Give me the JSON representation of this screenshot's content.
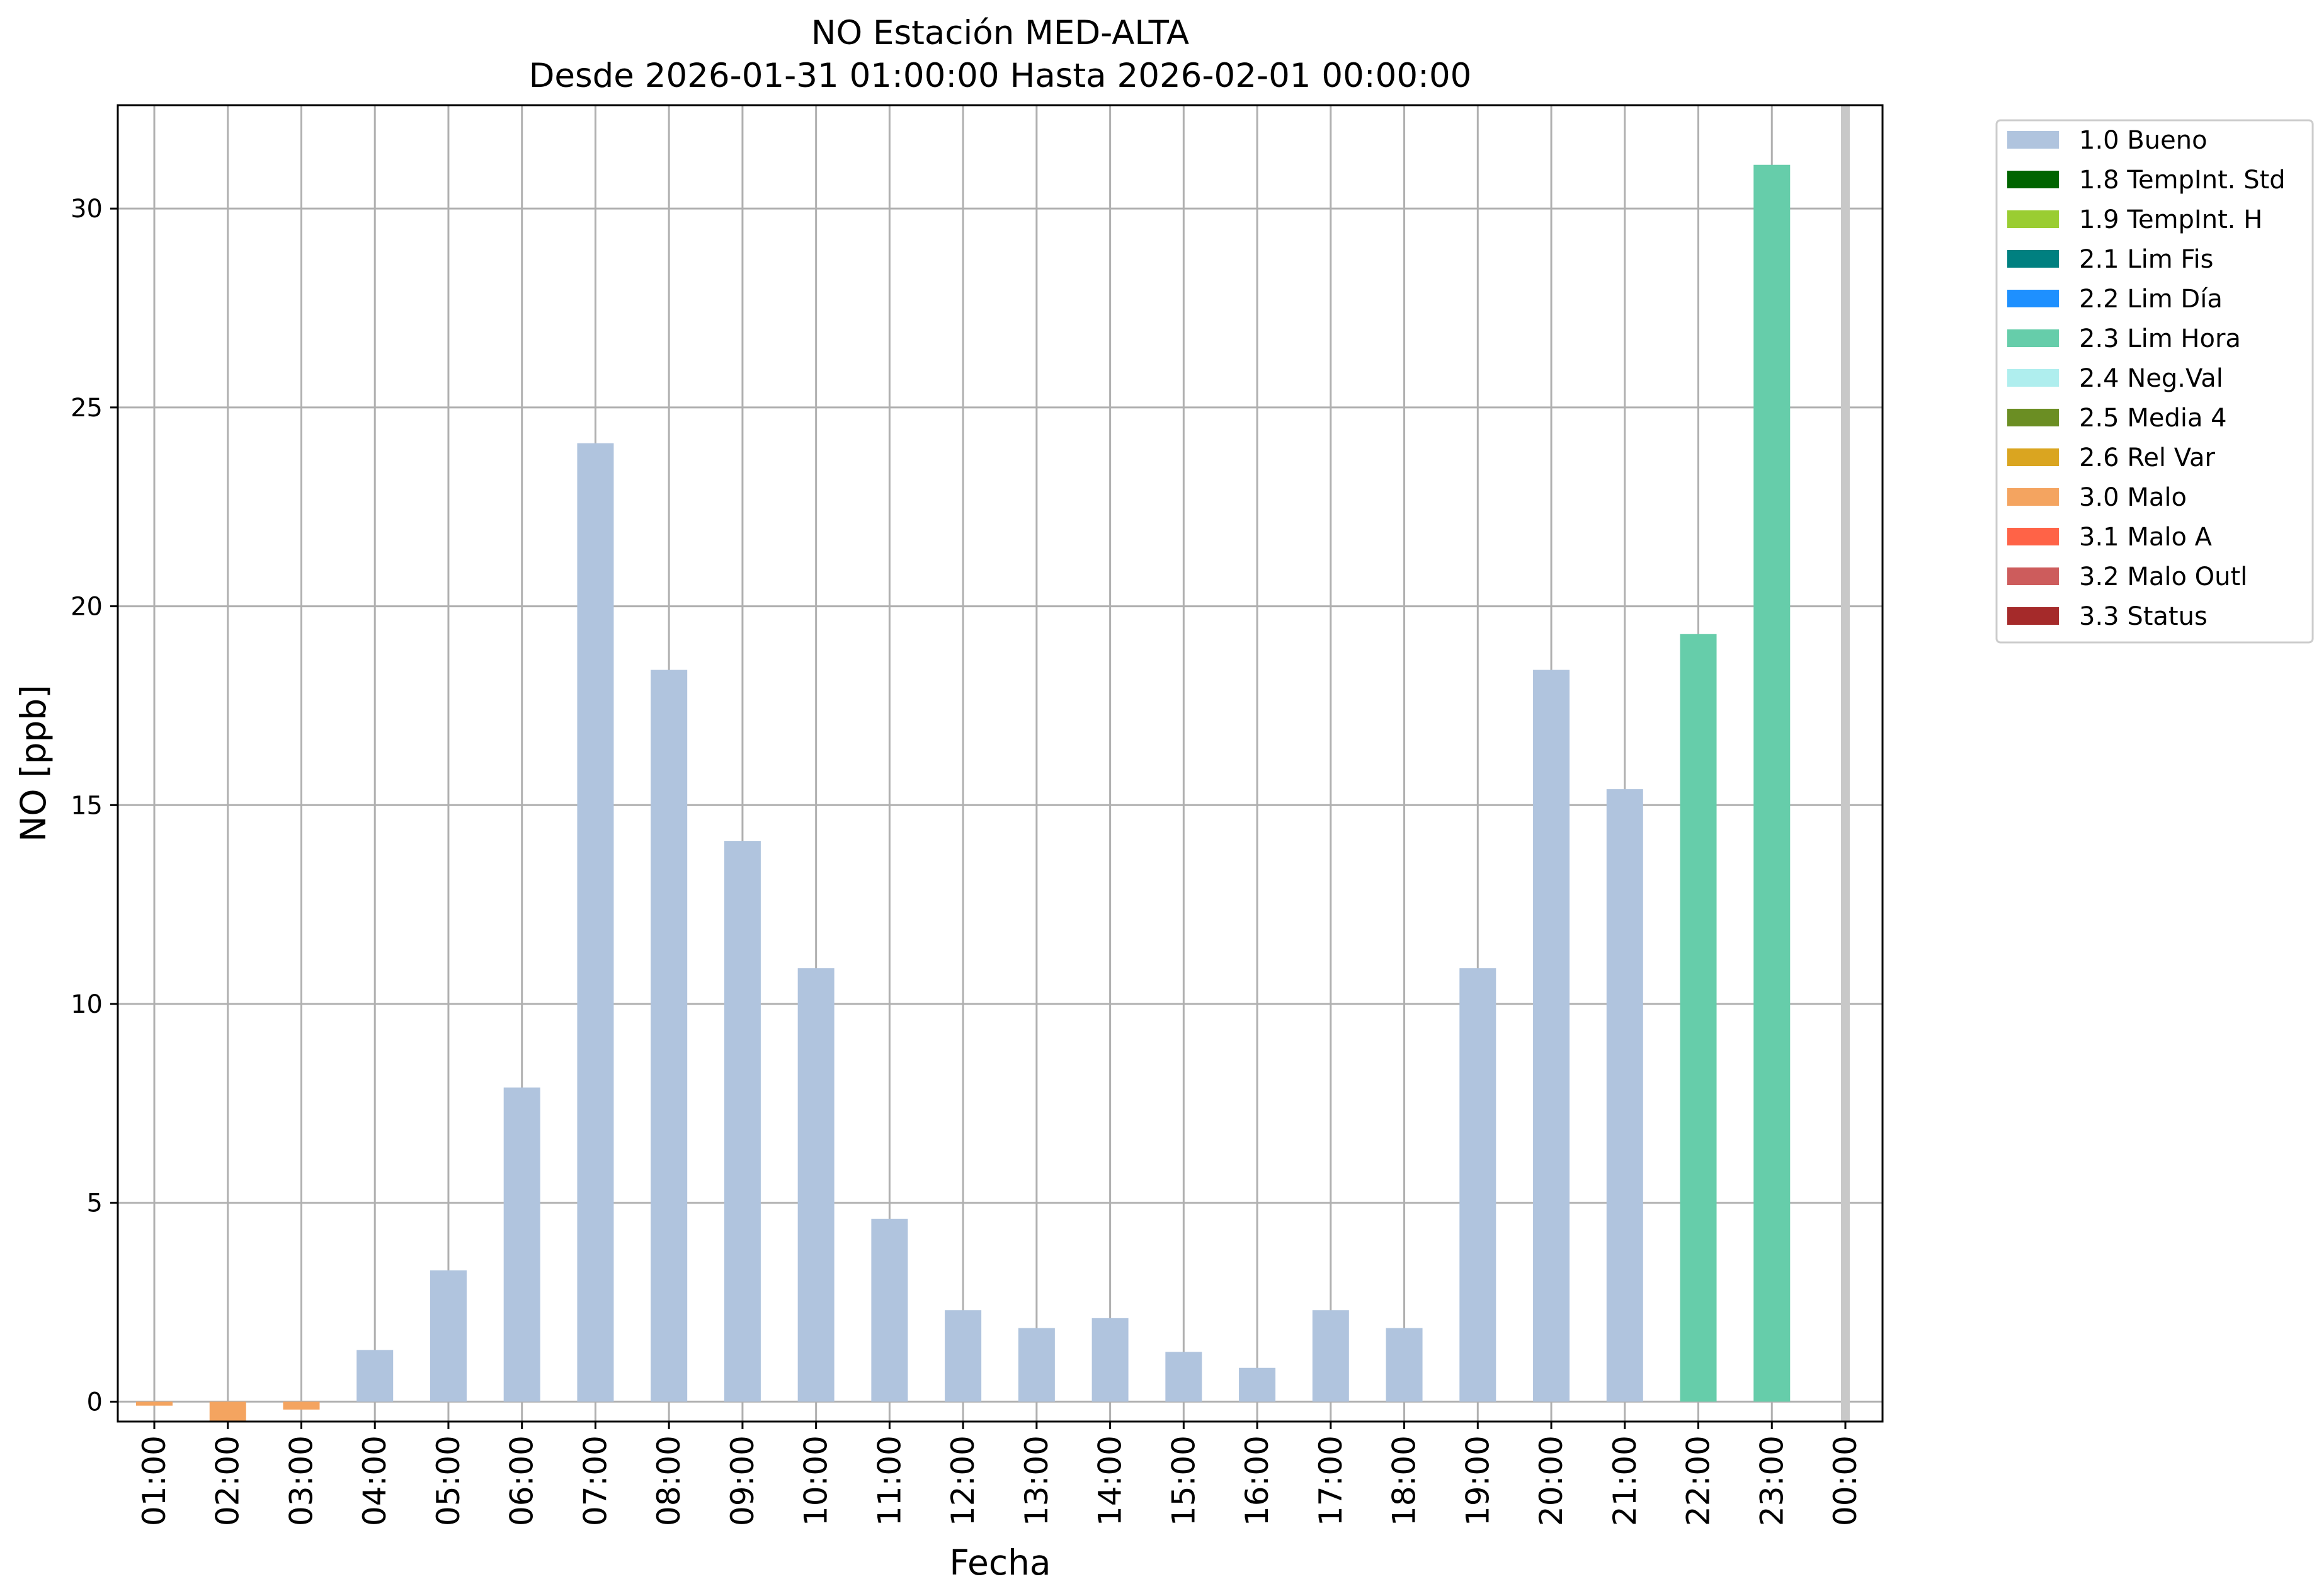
{
  "chart_data": {
    "type": "bar",
    "title": "NO Estación MED-ALTA",
    "subtitle": "Desde 2026-01-31 01:00:00 Hasta 2026-02-01 00:00:00",
    "xlabel": "Fecha",
    "ylabel": "NO [ppb]",
    "ylim": [
      -0.5,
      32.6
    ],
    "yticks": [
      0,
      5,
      10,
      15,
      20,
      25,
      30
    ],
    "grid": true,
    "legend_position": "outside-top-right",
    "categories": [
      "01:00",
      "02:00",
      "03:00",
      "04:00",
      "05:00",
      "06:00",
      "07:00",
      "08:00",
      "09:00",
      "10:00",
      "11:00",
      "12:00",
      "13:00",
      "14:00",
      "15:00",
      "16:00",
      "17:00",
      "18:00",
      "19:00",
      "20:00",
      "21:00",
      "22:00",
      "23:00",
      "00:00"
    ],
    "values": [
      -0.1,
      -0.5,
      -0.2,
      1.3,
      3.3,
      7.9,
      24.1,
      18.4,
      14.1,
      10.9,
      4.6,
      2.3,
      1.85,
      2.1,
      1.25,
      0.85,
      2.3,
      1.85,
      10.9,
      18.4,
      15.4,
      19.3,
      31.1,
      null
    ],
    "flags": [
      "3.0 Malo",
      "3.0 Malo",
      "3.0 Malo",
      "1.0 Bueno",
      "1.0 Bueno",
      "1.0 Bueno",
      "1.0 Bueno",
      "1.0 Bueno",
      "1.0 Bueno",
      "1.0 Bueno",
      "1.0 Bueno",
      "1.0 Bueno",
      "1.0 Bueno",
      "1.0 Bueno",
      "1.0 Bueno",
      "1.0 Bueno",
      "1.0 Bueno",
      "1.0 Bueno",
      "1.0 Bueno",
      "1.0 Bueno",
      "1.0 Bueno",
      "2.3 Lim Hora",
      "2.3 Lim Hora",
      ""
    ],
    "legend": [
      {
        "label": "1.0 Bueno",
        "color": "#b0c4de"
      },
      {
        "label": "1.8 TempInt. Std",
        "color": "#006400"
      },
      {
        "label": "1.9 TempInt. H",
        "color": "#9acd32"
      },
      {
        "label": "2.1 Lim Fis",
        "color": "#008080"
      },
      {
        "label": "2.2 Lim Día",
        "color": "#1e90ff"
      },
      {
        "label": "2.3 Lim Hora",
        "color": "#66cdaa"
      },
      {
        "label": "2.4 Neg.Val",
        "color": "#afeeee"
      },
      {
        "label": "2.5 Media 4",
        "color": "#6b8e23"
      },
      {
        "label": "2.6 Rel Var",
        "color": "#daa520"
      },
      {
        "label": "3.0 Malo",
        "color": "#f4a460"
      },
      {
        "label": "3.1 Malo A",
        "color": "#ff6347"
      },
      {
        "label": "3.2 Malo Outl",
        "color": "#cd5c5c"
      },
      {
        "label": "3.3 Status",
        "color": "#a52a2a"
      }
    ],
    "highlight_line_at": "00:00",
    "highlight_line_color": "#c8c8c8"
  }
}
